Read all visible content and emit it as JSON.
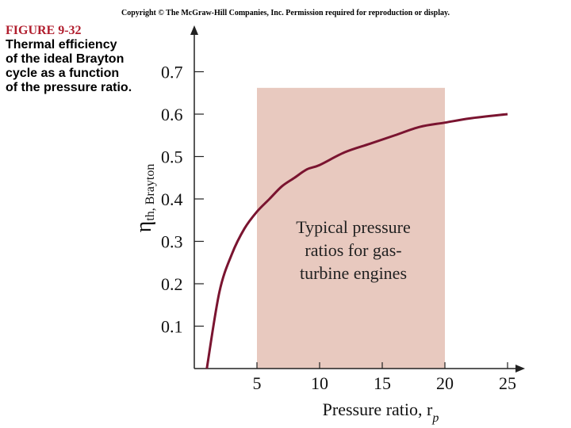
{
  "copyright": "Copyright © The McGraw-Hill Companies, Inc. Permission required for reproduction or display.",
  "caption": {
    "figure_number": "FIGURE 9-32",
    "text": "Thermal efficiency of the ideal Brayton cycle as a function of the pressure ratio."
  },
  "chart_data": {
    "type": "line",
    "xlabel": {
      "main": "Pressure ratio, r",
      "sub": "p"
    },
    "ylabel": {
      "main": "η",
      "sub": "th, Brayton"
    },
    "xlim": [
      0,
      26.5
    ],
    "ylim": [
      0,
      0.78
    ],
    "xticks": [
      5,
      10,
      15,
      20,
      25
    ],
    "yticks": [
      0.1,
      0.2,
      0.3,
      0.4,
      0.5,
      0.6,
      0.7
    ],
    "ytick_labels": [
      "0.1",
      "0.2",
      "0.3",
      "0.4",
      "0.5",
      "0.6",
      "0.7"
    ],
    "grid": false,
    "series": [
      {
        "x": [
          1,
          2,
          3,
          4,
          5,
          6,
          7,
          8,
          9,
          10,
          12,
          14,
          16,
          18,
          20,
          22,
          25
        ],
        "y": [
          0.0,
          0.18,
          0.27,
          0.33,
          0.37,
          0.4,
          0.43,
          0.45,
          0.47,
          0.48,
          0.51,
          0.53,
          0.55,
          0.57,
          0.58,
          0.59,
          0.6
        ]
      }
    ],
    "shaded_region": {
      "x_range": [
        5,
        20
      ],
      "y_top": 0.662,
      "color": "#e8c9bf",
      "label_lines": [
        "Typical pressure",
        "ratios for gas-",
        "turbine engines"
      ]
    },
    "curve_color": "#7a1430"
  }
}
